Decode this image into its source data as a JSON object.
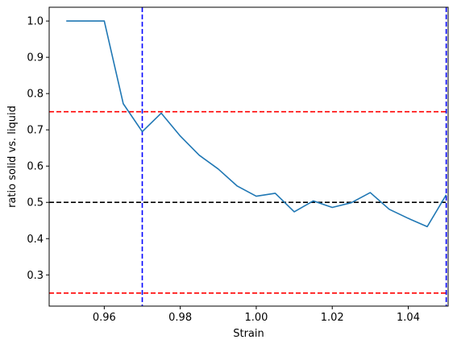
{
  "chart_data": {
    "type": "line",
    "title": "",
    "xlabel": "Strain",
    "ylabel": "ratio solid vs. liquid",
    "xlim": [
      0.9455,
      1.0505
    ],
    "ylim": [
      0.214,
      1.038
    ],
    "grid": false,
    "x_ticks": [
      0.96,
      0.98,
      1.0,
      1.02,
      1.04
    ],
    "x_tick_labels": [
      "0.96",
      "0.98",
      "1.00",
      "1.02",
      "1.04"
    ],
    "y_ticks": [
      0.3,
      0.4,
      0.5,
      0.6,
      0.7,
      0.8,
      0.9,
      1.0
    ],
    "y_tick_labels": [
      "0.3",
      "0.4",
      "0.5",
      "0.6",
      "0.7",
      "0.8",
      "0.9",
      "1.0"
    ],
    "series": [
      {
        "color": "#1f77b4",
        "x": [
          0.95,
          0.955,
          0.96,
          0.965,
          0.97,
          0.975,
          0.98,
          0.985,
          0.99,
          0.995,
          1.0,
          1.005,
          1.01,
          1.015,
          1.02,
          1.025,
          1.03,
          1.035,
          1.04,
          1.045,
          1.05
        ],
        "y": [
          1.0,
          1.0,
          1.0,
          0.772,
          0.695,
          0.746,
          0.683,
          0.63,
          0.592,
          0.545,
          0.517,
          0.525,
          0.474,
          0.504,
          0.486,
          0.499,
          0.527,
          0.481,
          0.456,
          0.433,
          0.521
        ]
      }
    ],
    "reference_lines": [
      {
        "orientation": "horizontal",
        "value": 0.75,
        "color": "#ff0000",
        "style": "dashed"
      },
      {
        "orientation": "horizontal",
        "value": 0.25,
        "color": "#ff0000",
        "style": "dashed"
      },
      {
        "orientation": "horizontal",
        "value": 0.5,
        "color": "#000000",
        "style": "dashed"
      },
      {
        "orientation": "vertical",
        "value": 0.97,
        "color": "#0000ff",
        "style": "dashed"
      },
      {
        "orientation": "vertical",
        "value": 1.05,
        "color": "#0000ff",
        "style": "dashed"
      }
    ]
  }
}
